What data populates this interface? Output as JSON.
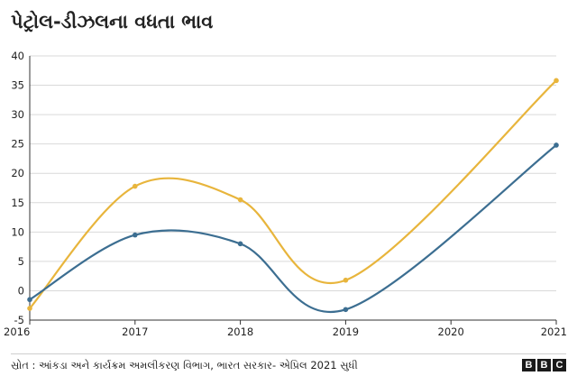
{
  "title": "પેટ્રોલ-ડીઝલના વધતા ભાવ",
  "source": "સ્રોત : આંકડા અને કાર્યક્રમ અમલીકરણ વિભાગ, ભારત સરકાર- એપ્રિલ 2021 સુધી",
  "logo": [
    "B",
    "B",
    "C"
  ],
  "colors": {
    "series_yellow": "#e8b53c",
    "series_blue": "#3c6e91",
    "grid": "#d9d9d9",
    "axis": "#333333"
  },
  "chart_data": {
    "type": "line",
    "x": [
      "2016",
      "2017",
      "2018",
      "2019",
      "2020",
      "2021"
    ],
    "series": [
      {
        "values": [
          -3,
          17.8,
          15.5,
          1.8,
          null,
          35.8
        ],
        "color": "#e8b53c"
      },
      {
        "values": [
          -1.5,
          9.5,
          8.0,
          -3.2,
          null,
          24.8
        ],
        "color": "#3c6e91"
      }
    ],
    "ylim": [
      -5,
      40
    ],
    "yticks": [
      -5,
      0,
      5,
      10,
      15,
      20,
      25,
      30,
      35,
      40
    ],
    "grid": true,
    "smooth": true
  }
}
